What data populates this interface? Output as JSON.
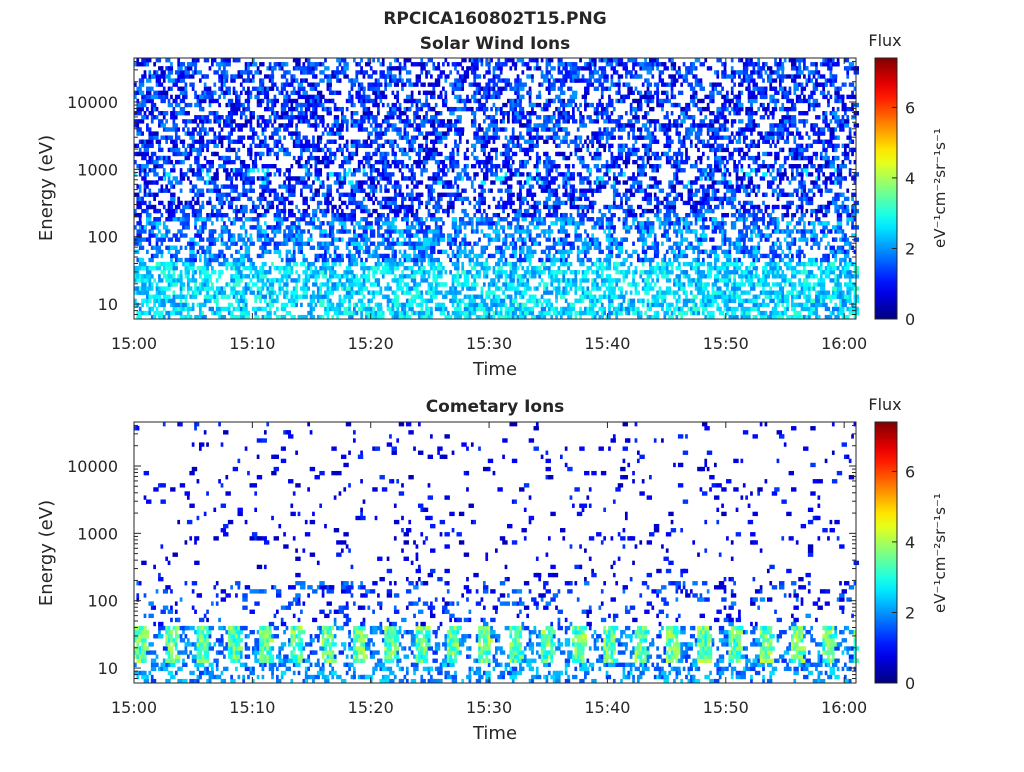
{
  "figure_title": "RPCICA160802T15.PNG",
  "colorbar": {
    "title": "Flux",
    "units_label": "eV⁻¹cm⁻²sr⁻¹s⁻¹",
    "ticks": [
      "0",
      "2",
      "4",
      "6"
    ],
    "range": [
      0,
      7.4
    ],
    "colormap": "jet"
  },
  "chart_data": [
    {
      "type": "heatmap",
      "title": "Solar Wind Ions",
      "xlabel": "Time",
      "ylabel": "Energy (eV)",
      "xticks": [
        "15:00",
        "15:10",
        "15:20",
        "15:30",
        "15:40",
        "15:50",
        "16:00"
      ],
      "xlim": [
        "15:00",
        "16:01"
      ],
      "yticks": [
        "10",
        "100",
        "1000",
        "10000"
      ],
      "ylim": [
        6,
        45000
      ],
      "yscale": "log",
      "value_range": [
        0,
        7.4
      ],
      "description": "Dense flux across all energies; values mostly 0.5-2 at high energies, 2-3 below 30 eV"
    },
    {
      "type": "heatmap",
      "title": "Cometary Ions",
      "xlabel": "Time",
      "ylabel": "Energy (eV)",
      "xticks": [
        "15:00",
        "15:10",
        "15:20",
        "15:30",
        "15:40",
        "15:50",
        "16:00"
      ],
      "xlim": [
        "15:00",
        "16:01"
      ],
      "yticks": [
        "10",
        "100",
        "1000",
        "10000"
      ],
      "ylim": [
        6,
        45000
      ],
      "yscale": "log",
      "value_range": [
        0,
        7.4
      ],
      "description": "Sparse flux at high energies; strong periodic band near 15-30 eV with values up to ~4"
    }
  ]
}
